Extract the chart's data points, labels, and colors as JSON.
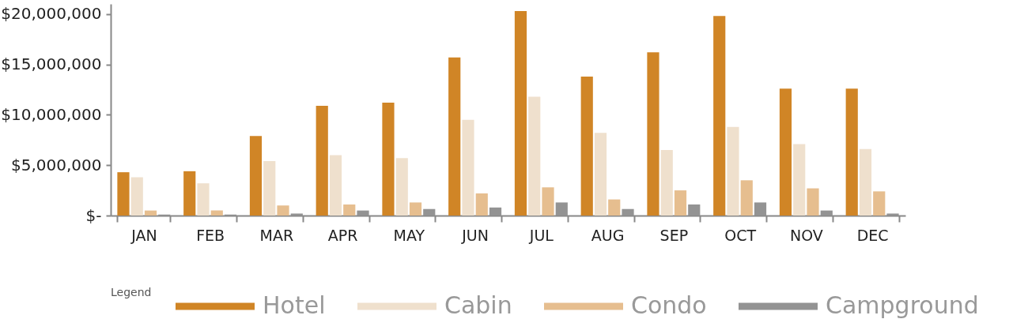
{
  "chart_data": {
    "type": "bar",
    "legend_title": "Legend",
    "legend": "bottom",
    "grid": false,
    "categories": [
      "JAN",
      "FEB",
      "MAR",
      "APR",
      "MAY",
      "JUN",
      "JUL",
      "AUG",
      "SEP",
      "OCT",
      "NOV",
      "DEC"
    ],
    "ylim": [
      0,
      21000000
    ],
    "yticks": [
      {
        "value": 0,
        "label": "$-"
      },
      {
        "value": 5000000,
        "label": "$5,000,000"
      },
      {
        "value": 10000000,
        "label": "$10,000,000"
      },
      {
        "value": 15000000,
        "label": "$15,000,000"
      },
      {
        "value": 20000000,
        "label": "$20,000,000"
      }
    ],
    "series": [
      {
        "name": "Hotel",
        "color": "#d08526",
        "values": [
          4300000,
          4400000,
          7900000,
          10900000,
          11200000,
          15700000,
          20300000,
          13800000,
          16200000,
          19800000,
          12600000,
          12600000
        ]
      },
      {
        "name": "Cabin",
        "color": "#efe0cd",
        "values": [
          3800000,
          3200000,
          5400000,
          6000000,
          5700000,
          9500000,
          11800000,
          8200000,
          6500000,
          8800000,
          7100000,
          6600000
        ]
      },
      {
        "name": "Condo",
        "color": "#e6be8f",
        "values": [
          500000,
          500000,
          1000000,
          1100000,
          1300000,
          2200000,
          2800000,
          1600000,
          2500000,
          3500000,
          2700000,
          2400000
        ]
      },
      {
        "name": "Campground",
        "color": "#939393",
        "values": [
          100000,
          100000,
          200000,
          500000,
          650000,
          800000,
          1300000,
          650000,
          1100000,
          1300000,
          500000,
          200000
        ]
      }
    ]
  }
}
